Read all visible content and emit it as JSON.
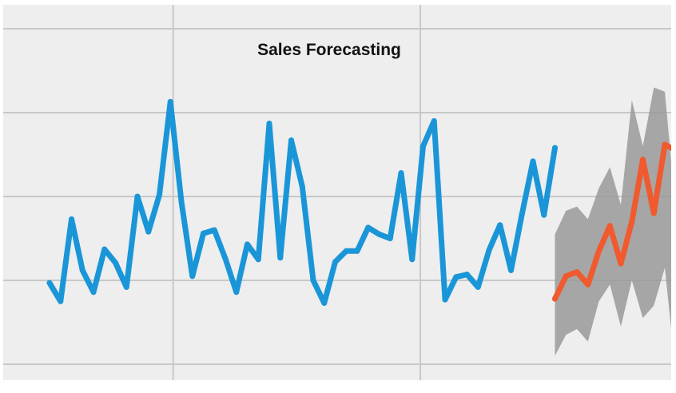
{
  "chart_data": {
    "type": "line",
    "title": "Sales Forecasting",
    "xlabel": "",
    "ylabel": "",
    "grid": true,
    "legend": "none",
    "x_range": [
      0,
      57
    ],
    "y_range": [
      0,
      4.4
    ],
    "series": [
      {
        "role": "actual",
        "color": "#1a96d8",
        "x": [
          0,
          1,
          2,
          3,
          4,
          5,
          6,
          7,
          8,
          9,
          10,
          11,
          12,
          13,
          14,
          15,
          16,
          17,
          18,
          19,
          20,
          21,
          22,
          23,
          24,
          25,
          26,
          27,
          28,
          29,
          30,
          31,
          32,
          33,
          34,
          35,
          36,
          37,
          38,
          39,
          40,
          41,
          42,
          43,
          44,
          45,
          46
        ],
        "values": [
          0.97,
          0.75,
          1.73,
          1.12,
          0.86,
          1.37,
          1.21,
          0.92,
          2.0,
          1.58,
          2.02,
          3.13,
          1.94,
          1.05,
          1.56,
          1.6,
          1.26,
          0.86,
          1.43,
          1.25,
          2.87,
          1.27,
          2.67,
          2.12,
          1.0,
          0.73,
          1.22,
          1.35,
          1.35,
          1.63,
          1.55,
          1.5,
          2.28,
          1.25,
          2.6,
          2.9,
          0.77,
          1.04,
          1.07,
          0.92,
          1.36,
          1.66,
          1.12,
          1.79,
          2.42,
          1.78,
          2.58
        ]
      },
      {
        "role": "forecast",
        "color": "#f05a2e",
        "x": [
          46,
          47,
          48,
          49,
          50,
          51,
          52,
          53,
          54,
          55,
          56,
          57
        ],
        "values": [
          0.78,
          1.05,
          1.1,
          0.95,
          1.35,
          1.65,
          1.2,
          1.7,
          2.44,
          1.8,
          2.62,
          2.55
        ]
      },
      {
        "role": "confidence-band",
        "color": "#999999",
        "x": [
          46,
          47,
          48,
          49,
          50,
          51,
          52,
          53,
          54,
          55,
          56,
          57
        ],
        "upper": [
          1.55,
          1.83,
          1.88,
          1.73,
          2.1,
          2.35,
          1.9,
          3.15,
          2.6,
          3.3,
          3.25,
          1.83
        ],
        "lower": [
          0.1,
          0.35,
          0.42,
          0.27,
          0.75,
          0.95,
          0.45,
          1.0,
          0.55,
          0.7,
          1.15,
          -0.1
        ]
      }
    ],
    "colors": {
      "plot_background": "#eeeeee",
      "gridline": "#c8c8c8",
      "title": "#111111"
    }
  }
}
